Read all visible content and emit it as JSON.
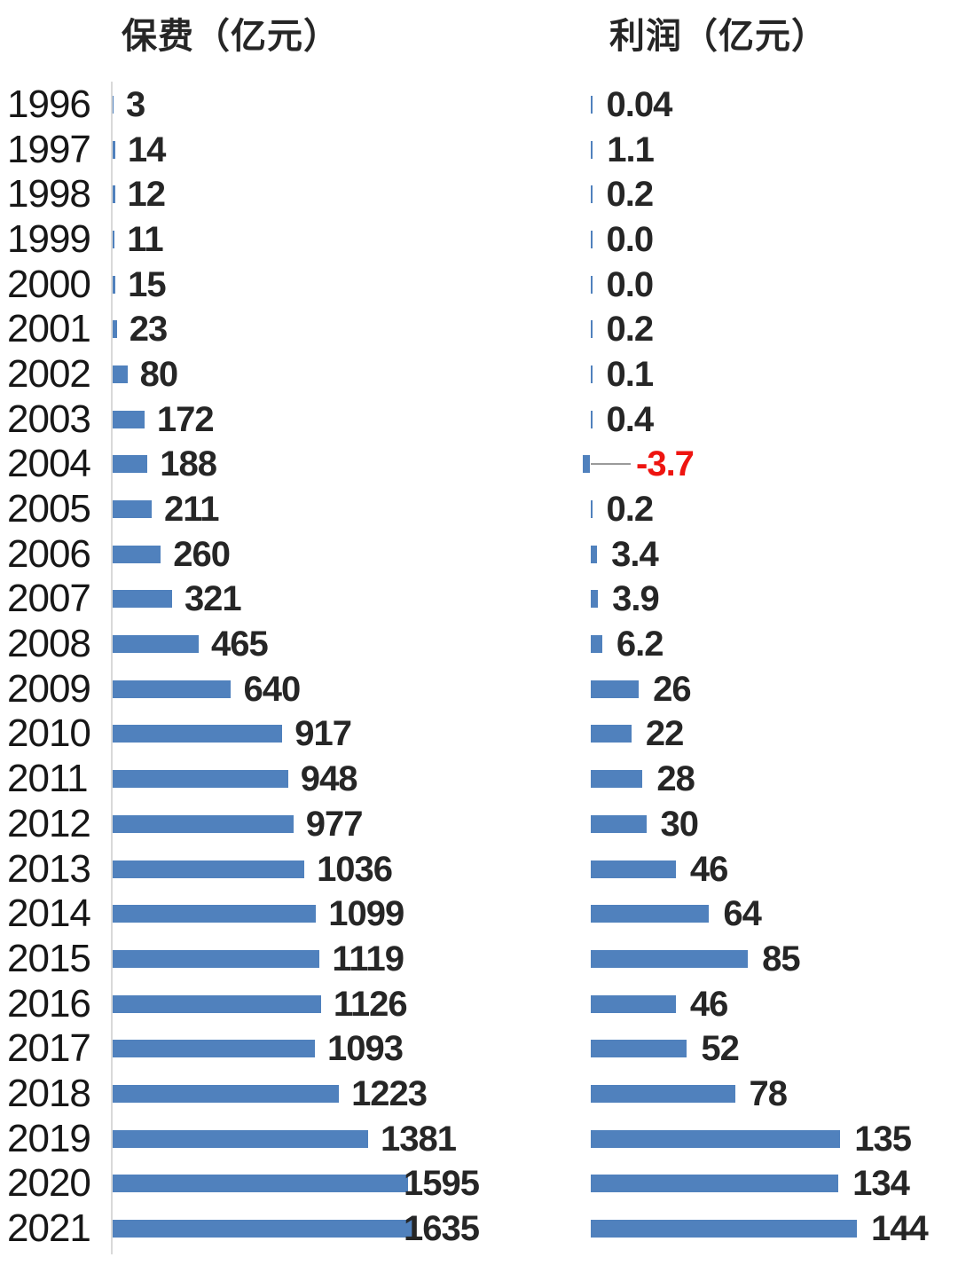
{
  "chart_data": [
    {
      "type": "bar",
      "orientation": "horizontal",
      "title": "保费（亿元）",
      "xlabel": "",
      "ylabel": "",
      "categories": [
        "1996",
        "1997",
        "1998",
        "1999",
        "2000",
        "2001",
        "2002",
        "2003",
        "2004",
        "2005",
        "2006",
        "2007",
        "2008",
        "2009",
        "2010",
        "2011",
        "2012",
        "2013",
        "2014",
        "2015",
        "2016",
        "2017",
        "2018",
        "2019",
        "2020",
        "2021"
      ],
      "values": [
        3,
        14,
        12,
        11,
        15,
        23,
        80,
        172,
        188,
        211,
        260,
        321,
        465,
        640,
        917,
        948,
        977,
        1036,
        1099,
        1119,
        1126,
        1093,
        1223,
        1381,
        1595,
        1635
      ],
      "value_labels": [
        "3",
        "14",
        "12",
        "11",
        "15",
        "23",
        "80",
        "172",
        "188",
        "211",
        "260",
        "321",
        "465",
        "640",
        "917",
        "948",
        "977",
        "1036",
        "1099",
        "1119",
        "1126",
        "1093",
        "1223",
        "1381",
        "1595",
        "1635"
      ],
      "xlim": [
        0,
        1635
      ],
      "grid": false,
      "legend": "none",
      "axis_line_visible": true
    },
    {
      "type": "bar",
      "orientation": "horizontal",
      "title": "利润（亿元）",
      "xlabel": "",
      "ylabel": "",
      "categories": [
        "1996",
        "1997",
        "1998",
        "1999",
        "2000",
        "2001",
        "2002",
        "2003",
        "2004",
        "2005",
        "2006",
        "2007",
        "2008",
        "2009",
        "2010",
        "2011",
        "2012",
        "2013",
        "2014",
        "2015",
        "2016",
        "2017",
        "2018",
        "2019",
        "2020",
        "2021"
      ],
      "values": [
        0.04,
        1.1,
        0.2,
        0.0,
        0.0,
        0.2,
        0.1,
        0.4,
        -3.7,
        0.2,
        3.4,
        3.9,
        6.2,
        26,
        22,
        28,
        30,
        46,
        64,
        85,
        46,
        52,
        78,
        135,
        134,
        144
      ],
      "value_labels": [
        "0.04",
        "1.1",
        "0.2",
        "0.0",
        "0.0",
        "0.2",
        "0.1",
        "0.4",
        "-3.7",
        "0.2",
        "3.4",
        "3.9",
        "6.2",
        "26",
        "22",
        "28",
        "30",
        "46",
        "64",
        "85",
        "46",
        "52",
        "78",
        "135",
        "134",
        "144"
      ],
      "xlim": [
        0,
        144
      ],
      "grid": false,
      "legend": "none",
      "axis_line_visible": false,
      "negative_annotation": {
        "year": "2004",
        "label": "-3.7",
        "leader_line": true
      }
    }
  ],
  "colors": {
    "bar": "#5081BD",
    "text": "#262626",
    "year_text": "#171717",
    "negative_label": "#EE1410",
    "axis": "#D9D9D9",
    "leader": "#9A9A9A",
    "background": "#FFFFFF"
  }
}
